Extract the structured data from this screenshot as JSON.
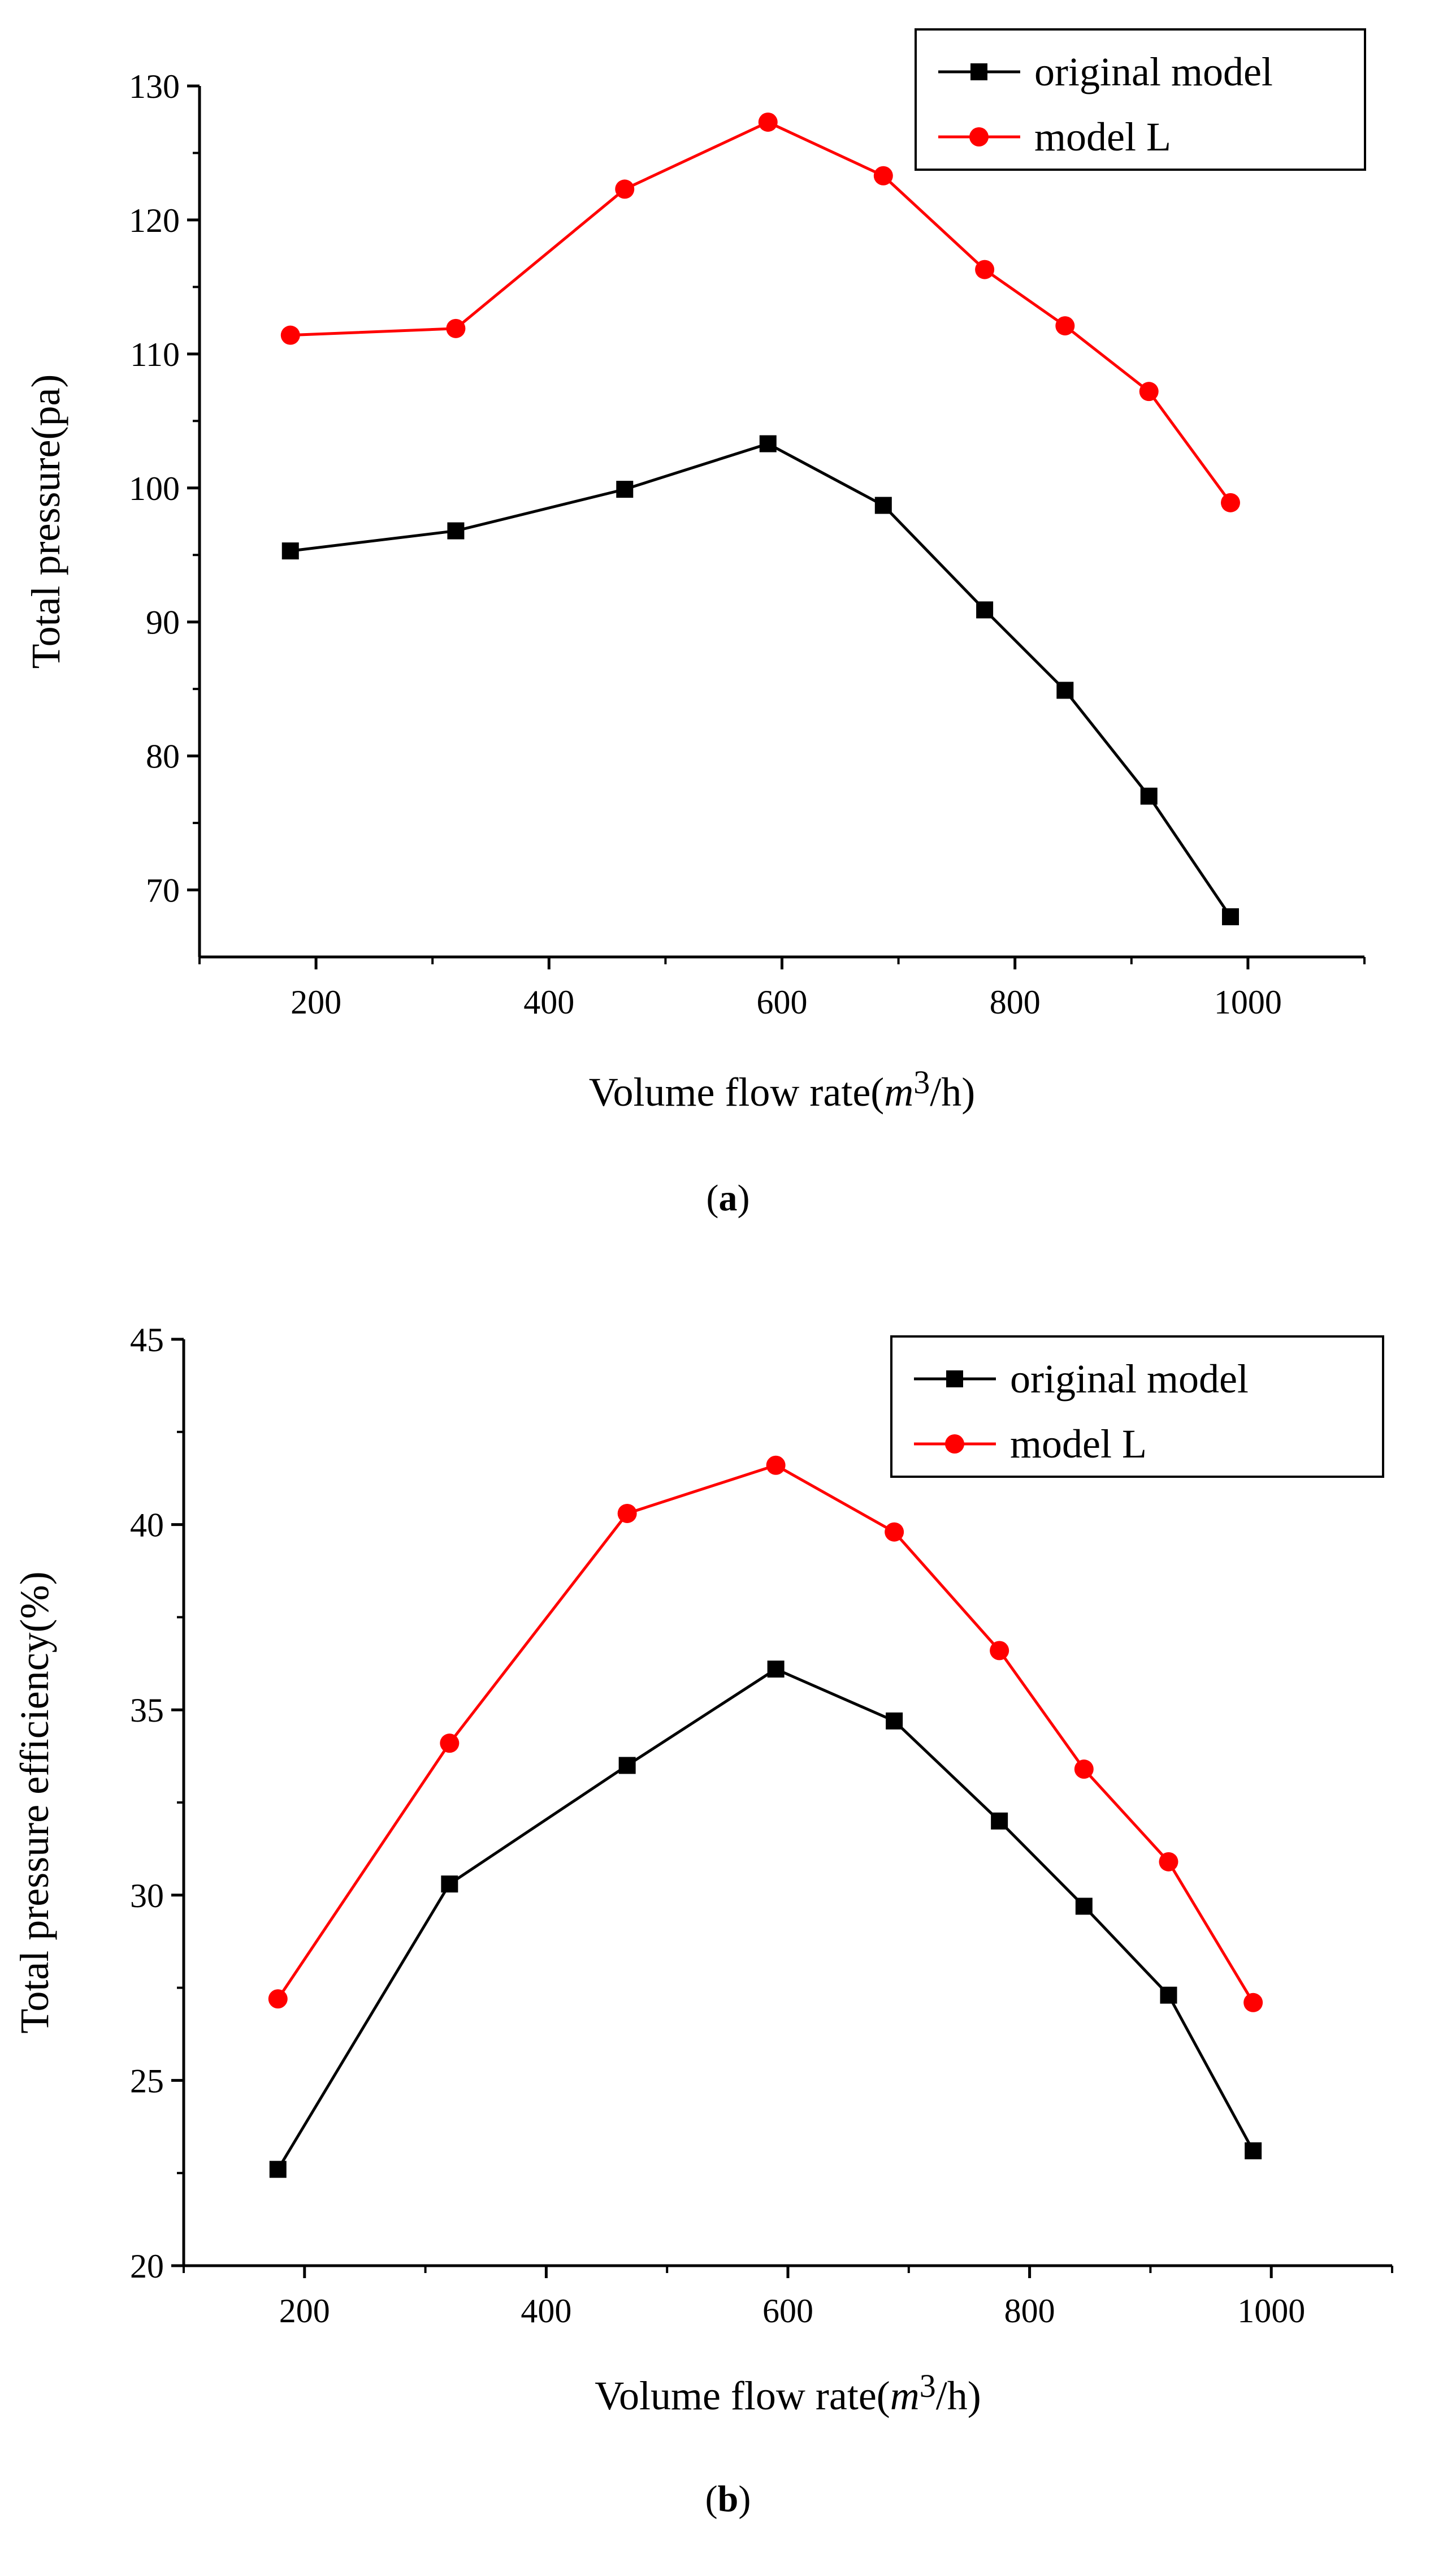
{
  "chart_data": [
    {
      "type": "line",
      "panel_label": "a",
      "title": "",
      "xlabel": "Volume flow rate(",
      "xlabel_unit_italic": "m",
      "xlabel_unit_sup": "3",
      "xlabel_unit_rest": "/h)",
      "ylabel": "Total pressure(pa)",
      "xlim": [
        100,
        1100
      ],
      "ylim": [
        65,
        130
      ],
      "x_ticks": [
        200,
        400,
        600,
        800,
        1000
      ],
      "y_ticks": [
        70,
        80,
        90,
        100,
        110,
        120,
        130
      ],
      "legend_position": "top-right",
      "series": [
        {
          "name": "original model",
          "color": "#000000",
          "marker": "square",
          "x": [
            178,
            320,
            465,
            588,
            687,
            774,
            843,
            915,
            985
          ],
          "y": [
            95.3,
            96.8,
            99.9,
            103.3,
            98.7,
            90.9,
            84.9,
            77.0,
            68.0
          ]
        },
        {
          "name": "model L",
          "color": "#ff0000",
          "marker": "circle",
          "x": [
            178,
            320,
            465,
            588,
            687,
            774,
            843,
            915,
            985
          ],
          "y": [
            111.4,
            111.9,
            122.3,
            127.3,
            123.3,
            116.3,
            112.1,
            107.2,
            98.9
          ]
        }
      ]
    },
    {
      "type": "line",
      "panel_label": "b",
      "title": "",
      "xlabel": "Volume flow rate(",
      "xlabel_unit_italic": "m",
      "xlabel_unit_sup": "3",
      "xlabel_unit_rest": "/h)",
      "ylabel": "Total pressure efficiency(%)",
      "xlim": [
        100,
        1100
      ],
      "ylim": [
        20,
        45
      ],
      "x_ticks": [
        200,
        400,
        600,
        800,
        1000
      ],
      "y_ticks": [
        20,
        25,
        30,
        35,
        40,
        45
      ],
      "legend_position": "top-right",
      "series": [
        {
          "name": "original model",
          "color": "#000000",
          "marker": "square",
          "x": [
            178,
            320,
            467,
            590,
            688,
            775,
            845,
            915,
            985
          ],
          "y": [
            22.6,
            30.3,
            33.5,
            36.1,
            34.7,
            32.0,
            29.7,
            27.3,
            23.1
          ]
        },
        {
          "name": "model L",
          "color": "#ff0000",
          "marker": "circle",
          "x": [
            178,
            320,
            467,
            590,
            688,
            775,
            845,
            915,
            985
          ],
          "y": [
            27.2,
            34.1,
            40.3,
            41.6,
            39.8,
            36.6,
            33.4,
            30.9,
            27.1
          ]
        }
      ]
    }
  ]
}
